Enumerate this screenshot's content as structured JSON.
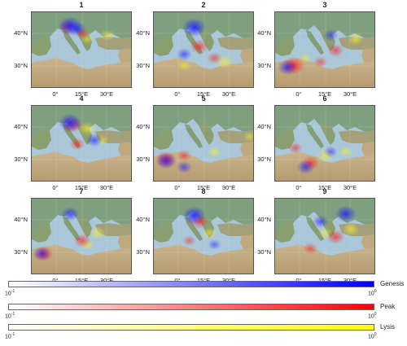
{
  "panels": [
    {
      "title": "1",
      "genesis": [
        [
          0.38,
          0.18,
          0.95
        ],
        [
          0.45,
          0.22,
          0.6
        ]
      ],
      "peak": [
        [
          0.35,
          0.2,
          0.5
        ],
        [
          0.5,
          0.28,
          0.35
        ]
      ],
      "lysis": [
        [
          0.75,
          0.3,
          0.4
        ],
        [
          0.55,
          0.35,
          0.3
        ]
      ]
    },
    {
      "title": "2",
      "genesis": [
        [
          0.4,
          0.2,
          0.95
        ],
        [
          0.3,
          0.55,
          0.45
        ]
      ],
      "peak": [
        [
          0.45,
          0.45,
          0.6
        ],
        [
          0.6,
          0.6,
          0.4
        ]
      ],
      "lysis": [
        [
          0.7,
          0.65,
          0.55
        ],
        [
          0.3,
          0.7,
          0.35
        ]
      ]
    },
    {
      "title": "3",
      "genesis": [
        [
          0.12,
          0.72,
          0.7
        ],
        [
          0.55,
          0.3,
          0.4
        ]
      ],
      "peak": [
        [
          0.18,
          0.7,
          0.9
        ],
        [
          0.6,
          0.5,
          0.5
        ],
        [
          0.45,
          0.65,
          0.35
        ]
      ],
      "lysis": [
        [
          0.8,
          0.35,
          0.5
        ],
        [
          0.3,
          0.6,
          0.3
        ]
      ]
    },
    {
      "title": "4",
      "genesis": [
        [
          0.38,
          0.22,
          0.9
        ],
        [
          0.62,
          0.45,
          0.5
        ]
      ],
      "peak": [
        [
          0.4,
          0.25,
          0.7
        ],
        [
          0.45,
          0.5,
          0.45
        ]
      ],
      "lysis": [
        [
          0.55,
          0.3,
          0.55
        ],
        [
          0.7,
          0.45,
          0.35
        ]
      ]
    },
    {
      "title": "5",
      "genesis": [
        [
          0.12,
          0.72,
          0.75
        ],
        [
          0.3,
          0.8,
          0.45
        ]
      ],
      "peak": [
        [
          0.12,
          0.7,
          0.8
        ],
        [
          0.3,
          0.65,
          0.4
        ]
      ],
      "lysis": [
        [
          0.6,
          0.6,
          0.4
        ],
        [
          0.95,
          0.4,
          0.3
        ]
      ]
    },
    {
      "title": "6",
      "genesis": [
        [
          0.3,
          0.8,
          0.6
        ],
        [
          0.55,
          0.6,
          0.35
        ]
      ],
      "peak": [
        [
          0.35,
          0.75,
          0.6
        ],
        [
          0.2,
          0.55,
          0.4
        ]
      ],
      "lysis": [
        [
          0.5,
          0.65,
          0.55
        ],
        [
          0.7,
          0.6,
          0.4
        ]
      ]
    },
    {
      "title": "7",
      "genesis": [
        [
          0.1,
          0.72,
          0.6
        ],
        [
          0.38,
          0.2,
          0.6
        ]
      ],
      "peak": [
        [
          0.12,
          0.72,
          0.7
        ],
        [
          0.5,
          0.55,
          0.55
        ]
      ],
      "lysis": [
        [
          0.65,
          0.45,
          0.5
        ],
        [
          0.55,
          0.6,
          0.4
        ]
      ]
    },
    {
      "title": "8",
      "genesis": [
        [
          0.4,
          0.22,
          0.9
        ],
        [
          0.6,
          0.6,
          0.3
        ]
      ],
      "peak": [
        [
          0.45,
          0.3,
          0.6
        ],
        [
          0.35,
          0.55,
          0.3
        ]
      ],
      "lysis": [
        [
          0.55,
          0.45,
          0.4
        ]
      ]
    },
    {
      "title": "9",
      "genesis": [
        [
          0.7,
          0.2,
          0.8
        ],
        [
          0.45,
          0.3,
          0.5
        ]
      ],
      "peak": [
        [
          0.6,
          0.5,
          0.6
        ],
        [
          0.35,
          0.65,
          0.4
        ]
      ],
      "lysis": [
        [
          0.75,
          0.4,
          0.55
        ],
        [
          0.5,
          0.45,
          0.4
        ]
      ]
    }
  ],
  "lat_labels": [
    "40°N",
    "30°N"
  ],
  "lon_labels": [
    "0°",
    "15°E",
    "30°E"
  ],
  "colorbars": [
    {
      "name": "Genesis",
      "color": "#0000ff",
      "tick_min": "10",
      "tick_min_exp": "-1",
      "tick_max": "10",
      "tick_max_exp": "0"
    },
    {
      "name": "Peak",
      "color": "#ff0000",
      "tick_min": "10",
      "tick_min_exp": "-1",
      "tick_max": "10",
      "tick_max_exp": "0"
    },
    {
      "name": "Lysis",
      "color": "#ffff00",
      "tick_min": "10",
      "tick_min_exp": "-1",
      "tick_max": "10",
      "tick_max_exp": "0"
    }
  ]
}
